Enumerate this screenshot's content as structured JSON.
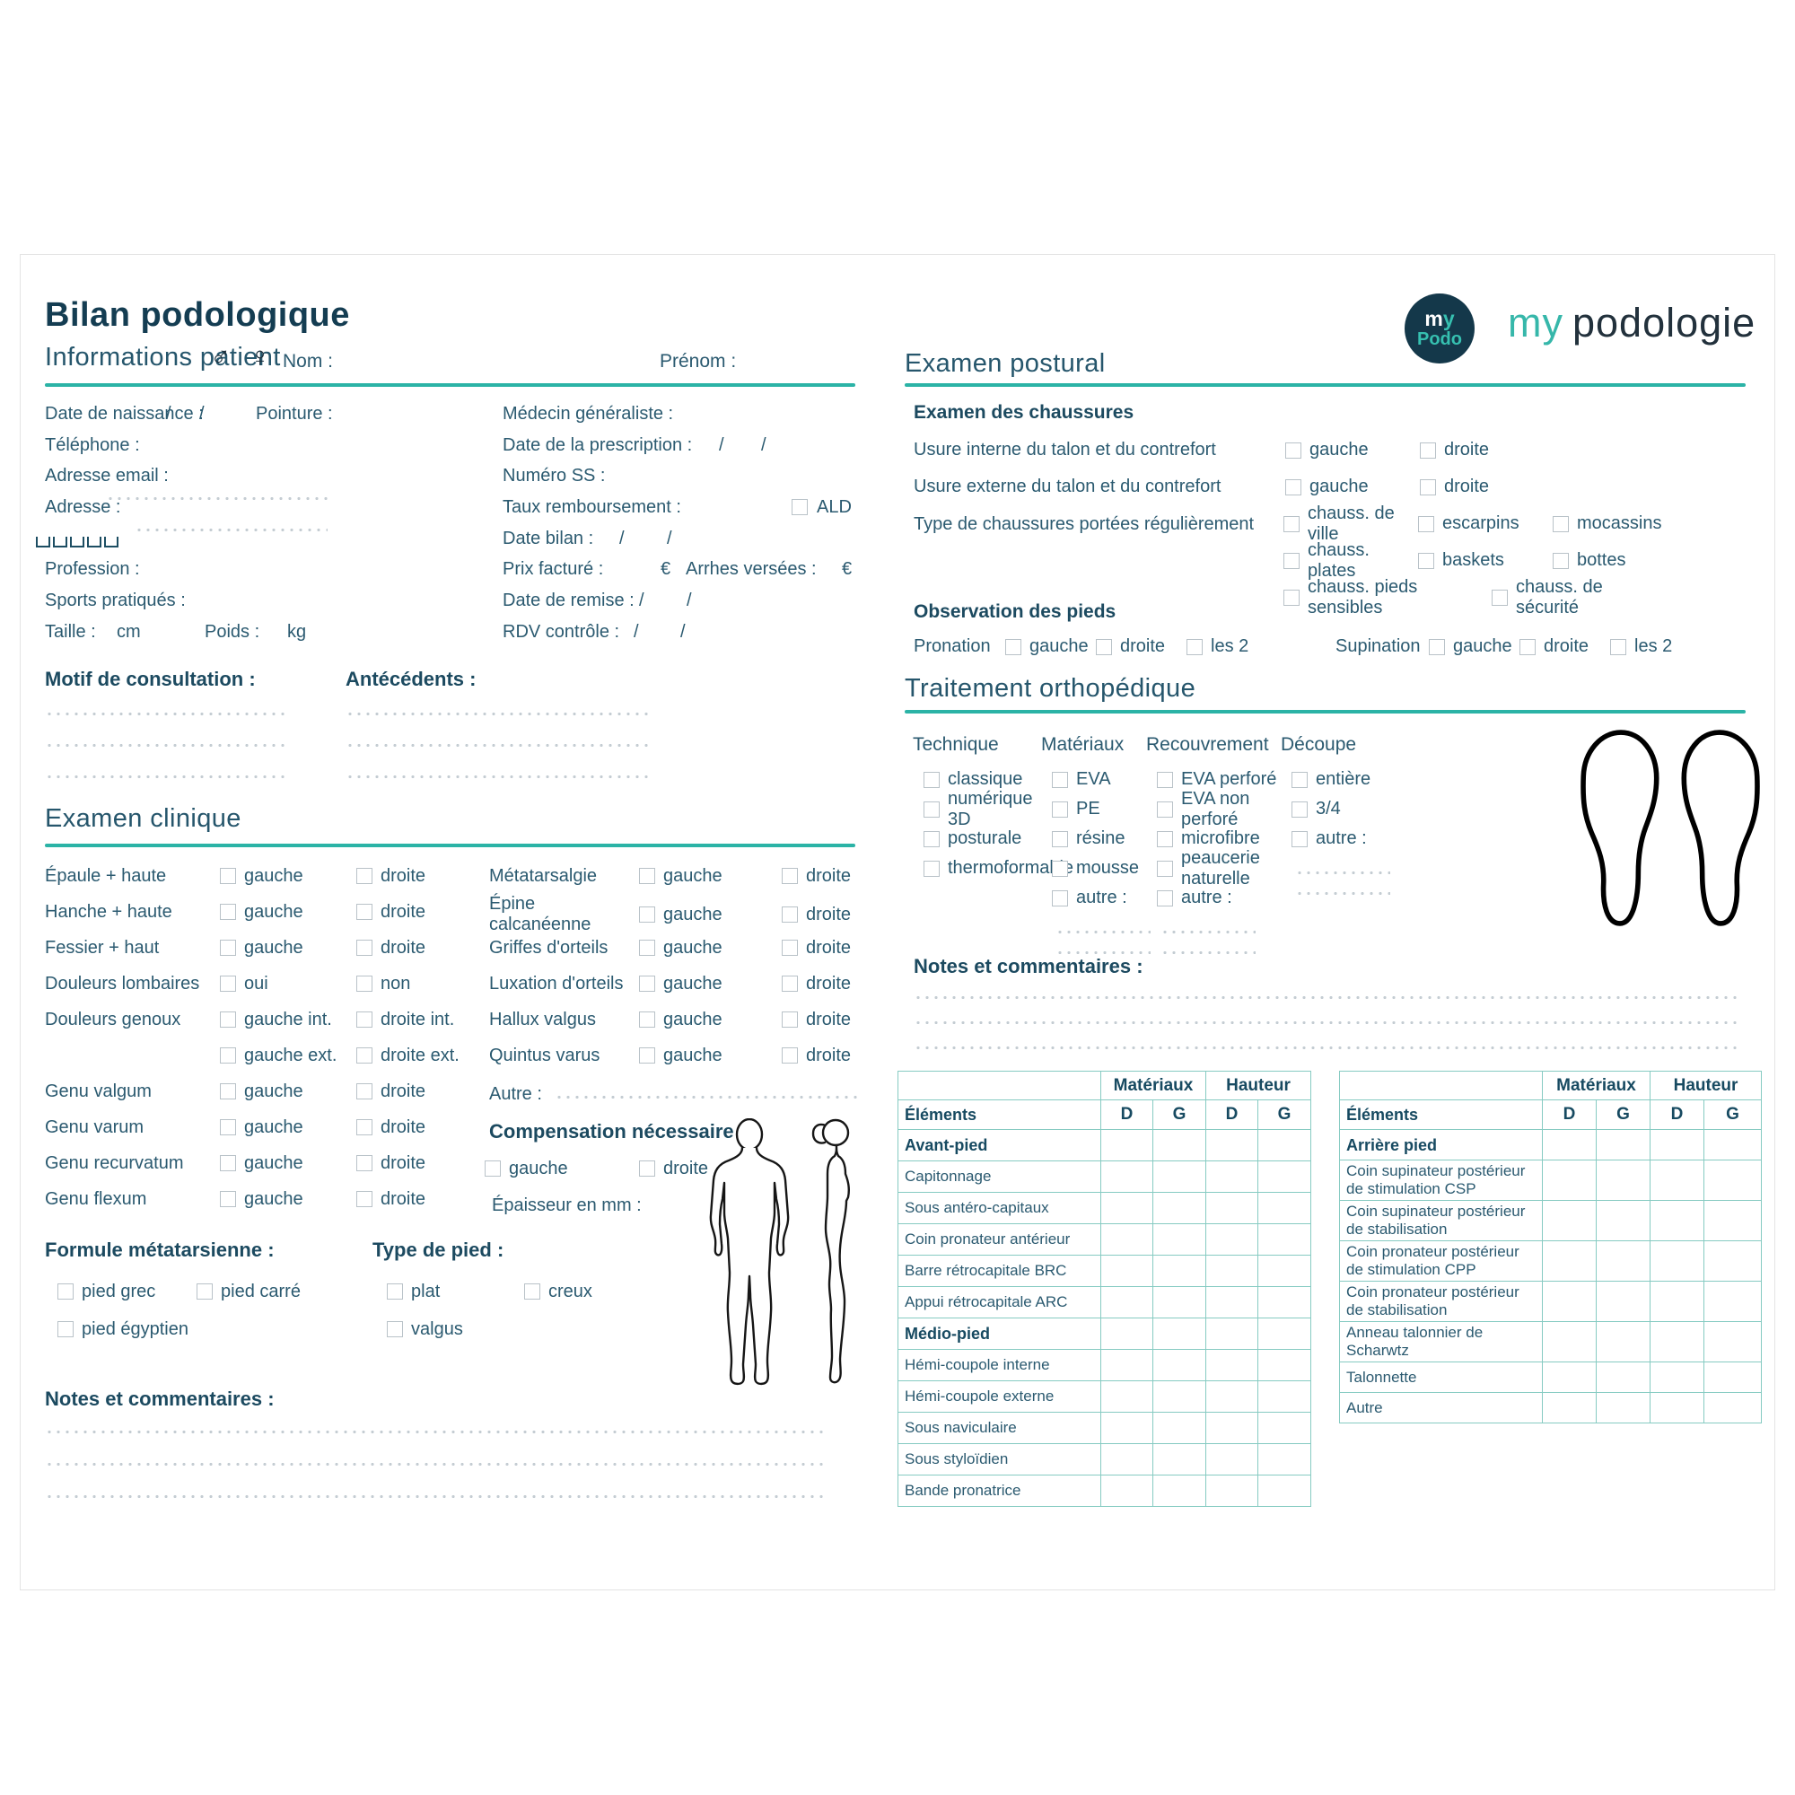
{
  "header": {
    "title": "Bilan podologique"
  },
  "brand": {
    "badge_m": "m",
    "badge_y": "y",
    "badge_podo": "Podo",
    "name_my": "my",
    "name_rest": "podologie"
  },
  "infos": {
    "title": "Informations patient",
    "male": "♂",
    "female": "♀",
    "nom": "Nom :",
    "prenom": "Prénom :",
    "naissance": "Date de naissance :",
    "slash": "/",
    "pointure": "Pointure :",
    "telephone": "Téléphone :",
    "email": "Adresse email :",
    "adresse": "Adresse :",
    "profession": "Profession :",
    "sports": "Sports pratiqués :",
    "taille": "Taille :",
    "cm": "cm",
    "poids": "Poids :",
    "kg": "kg",
    "medecin": "Médecin généraliste :",
    "prescription": "Date de la prescription :",
    "numss": "Numéro SS :",
    "taux": "Taux remboursement :",
    "ald": "ALD",
    "bilan": "Date bilan :",
    "prix": "Prix facturé :",
    "euro": "€",
    "arrhes": "Arrhes versées :",
    "remise": "Date de remise :",
    "rdv": "RDV contrôle :",
    "motif": "Motif de consultation :",
    "antecedents": "Antécédents :"
  },
  "clinique": {
    "title": "Examen clinique",
    "rows_a": [
      {
        "label": "Épaule + haute",
        "options": [
          "gauche",
          "droite"
        ]
      },
      {
        "label": "Hanche + haute",
        "options": [
          "gauche",
          "droite"
        ]
      },
      {
        "label": "Fessier + haut",
        "options": [
          "gauche",
          "droite"
        ]
      },
      {
        "label": "Douleurs lombaires",
        "options": [
          "oui",
          "non"
        ]
      },
      {
        "label": "Douleurs genoux",
        "options": [
          "gauche int.",
          "droite int."
        ]
      },
      {
        "label": "",
        "options": [
          "gauche ext.",
          "droite ext."
        ]
      },
      {
        "label": "Genu valgum",
        "options": [
          "gauche",
          "droite"
        ]
      },
      {
        "label": "Genu varum",
        "options": [
          "gauche",
          "droite"
        ]
      },
      {
        "label": "Genu recurvatum",
        "options": [
          "gauche",
          "droite"
        ]
      },
      {
        "label": "Genu flexum",
        "options": [
          "gauche",
          "droite"
        ]
      }
    ],
    "rows_b": [
      {
        "label": "Métatarsalgie",
        "options": [
          "gauche",
          "droite"
        ]
      },
      {
        "label": "Épine calcanéenne",
        "options": [
          "gauche",
          "droite"
        ]
      },
      {
        "label": "Griffes d'orteils",
        "options": [
          "gauche",
          "droite"
        ]
      },
      {
        "label": "Luxation d'orteils",
        "options": [
          "gauche",
          "droite"
        ]
      },
      {
        "label": "Hallux valgus",
        "options": [
          "gauche",
          "droite"
        ]
      },
      {
        "label": "Quintus varus",
        "options": [
          "gauche",
          "droite"
        ]
      }
    ],
    "autre_label": "Autre :",
    "compensation_title": "Compensation nécessaire ?",
    "compensation_options": [
      "gauche",
      "droite"
    ],
    "epaisseur_label": "Épaisseur en mm :",
    "formule_title": "Formule métatarsienne :",
    "formule_options": [
      "pied grec",
      "pied carré",
      "pied égyptien"
    ],
    "type_pied_title": "Type de pied :",
    "type_pied_options": [
      "plat",
      "creux",
      "valgus"
    ],
    "notes_label": "Notes et commentaires :"
  },
  "postural": {
    "title": "Examen postural",
    "chaussures_title": "Examen des chaussures",
    "usure_rows": [
      {
        "label": "Usure interne du talon et du contrefort",
        "options": [
          "gauche",
          "droite"
        ]
      },
      {
        "label": "Usure externe du talon et du contrefort",
        "options": [
          "gauche",
          "droite"
        ]
      }
    ],
    "type_label": "Type de chaussures portées régulièrement",
    "type_rows": [
      [
        "chauss. de ville",
        "escarpins",
        "mocassins"
      ],
      [
        "chauss. plates",
        "baskets",
        "bottes"
      ],
      [
        "chauss. pieds sensibles",
        "chauss. de sécurité"
      ]
    ],
    "pieds_title": "Observation des pieds",
    "pronation": {
      "label": "Pronation",
      "options": [
        "gauche",
        "droite",
        "les 2"
      ]
    },
    "supination": {
      "label": "Supination",
      "options": [
        "gauche",
        "droite",
        "les 2"
      ]
    }
  },
  "traitement": {
    "title": "Traitement orthopédique",
    "columns": [
      {
        "title": "Technique",
        "options": [
          "classique",
          "numérique 3D",
          "posturale",
          "thermoformable"
        ],
        "dotted": 0
      },
      {
        "title": "Matériaux",
        "options": [
          "EVA",
          "PE",
          "résine",
          "mousse",
          "autre :"
        ],
        "dotted": 2
      },
      {
        "title": "Recouvrement",
        "options": [
          "EVA perforé",
          "EVA non perforé",
          "microfibre",
          "peaucerie naturelle",
          "autre :"
        ],
        "dotted": 2
      },
      {
        "title": "Découpe",
        "options": [
          "entière",
          "3/4",
          "autre :"
        ],
        "dotted": 2
      }
    ],
    "notes_label": "Notes et commentaires :"
  },
  "tables": {
    "materiaux": "Matériaux",
    "hauteur": "Hauteur",
    "elements": "Éléments",
    "d": "D",
    "g": "G",
    "table1_rows": [
      {
        "label": "Avant-pied",
        "bold": true
      },
      {
        "label": "Capitonnage"
      },
      {
        "label": "Sous antéro-capitaux"
      },
      {
        "label": "Coin pronateur antérieur"
      },
      {
        "label": "Barre rétrocapitale BRC"
      },
      {
        "label": "Appui rétrocapitale ARC"
      },
      {
        "label": "Médio-pied",
        "bold": true
      },
      {
        "label": "Hémi-coupole interne"
      },
      {
        "label": "Hémi-coupole externe"
      },
      {
        "label": "Sous naviculaire"
      },
      {
        "label": "Sous styloïdien"
      },
      {
        "label": "Bande pronatrice"
      }
    ],
    "table2_rows": [
      {
        "label": "Arrière pied",
        "bold": true
      },
      {
        "label": "Coin supinateur postérieur de stimulation CSP"
      },
      {
        "label": "Coin supinateur postérieur de stabilisation"
      },
      {
        "label": "Coin pronateur postérieur de stimulation CPP"
      },
      {
        "label": "Coin pronateur postérieur de stabilisation"
      },
      {
        "label": "Anneau talonnier de Scharwtz"
      },
      {
        "label": "Talonnette"
      },
      {
        "label": "Autre"
      }
    ]
  }
}
